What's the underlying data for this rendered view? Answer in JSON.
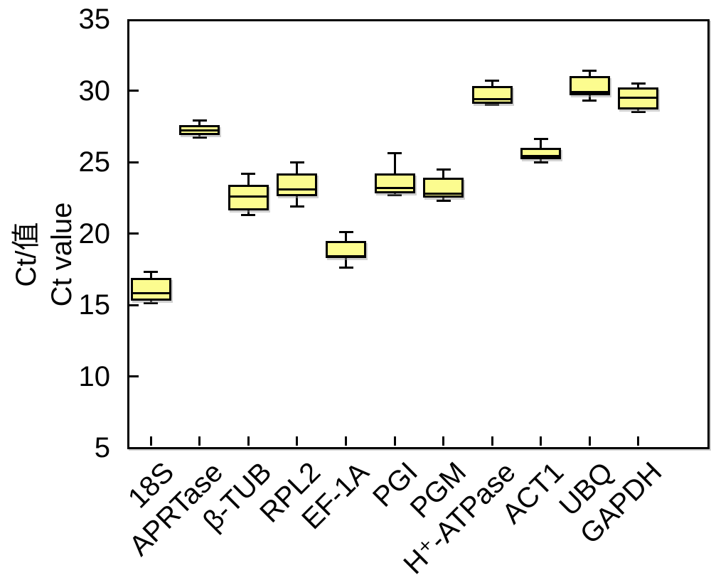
{
  "chart_data": {
    "type": "boxplot",
    "title": "",
    "ylabel_line1": "Ct/值",
    "ylabel_line2": "Ct value",
    "xlabel": "",
    "ylim": [
      5,
      35
    ],
    "yticks": [
      5,
      10,
      15,
      20,
      25,
      30,
      35
    ],
    "grid": false,
    "legend": "none",
    "box_fill_color": "#FCFC8F",
    "line_color": "#000000",
    "categories": [
      "18S",
      "APRTase",
      "β-TUB",
      "RPL2",
      "EF-1A",
      "PGI",
      "PGM",
      "H⁺-ATPase",
      "ACT1",
      "UBQ",
      "GAPDH"
    ],
    "series": [
      {
        "name": "18S",
        "whisker_low": 15.1,
        "q1": 15.3,
        "median": 15.8,
        "q3": 16.9,
        "whisker_high": 17.3
      },
      {
        "name": "APRTase",
        "whisker_low": 26.7,
        "q1": 26.9,
        "median": 27.2,
        "q3": 27.6,
        "whisker_high": 27.9
      },
      {
        "name": "β-TUB",
        "whisker_low": 21.3,
        "q1": 21.6,
        "median": 22.6,
        "q3": 23.4,
        "whisker_high": 24.2
      },
      {
        "name": "RPL2",
        "whisker_low": 21.9,
        "q1": 22.6,
        "median": 23.1,
        "q3": 24.2,
        "whisker_high": 25.0
      },
      {
        "name": "EF-1A",
        "whisker_low": 17.6,
        "q1": 18.3,
        "median": 18.4,
        "q3": 19.5,
        "whisker_high": 20.1
      },
      {
        "name": "PGI",
        "whisker_low": 22.7,
        "q1": 22.8,
        "median": 23.2,
        "q3": 24.2,
        "whisker_high": 25.6
      },
      {
        "name": "PGM",
        "whisker_low": 22.3,
        "q1": 22.5,
        "median": 22.8,
        "q3": 23.9,
        "whisker_high": 24.5
      },
      {
        "name": "H⁺-ATPase",
        "whisker_low": 29.0,
        "q1": 29.1,
        "median": 29.4,
        "q3": 30.3,
        "whisker_high": 30.7
      },
      {
        "name": "ACT1",
        "whisker_low": 25.0,
        "q1": 25.2,
        "median": 25.4,
        "q3": 26.0,
        "whisker_high": 26.6
      },
      {
        "name": "UBQ",
        "whisker_low": 29.3,
        "q1": 29.7,
        "median": 29.9,
        "q3": 31.0,
        "whisker_high": 31.4
      },
      {
        "name": "GAPDH",
        "whisker_low": 28.5,
        "q1": 28.7,
        "median": 29.5,
        "q3": 30.2,
        "whisker_high": 30.5
      }
    ]
  }
}
